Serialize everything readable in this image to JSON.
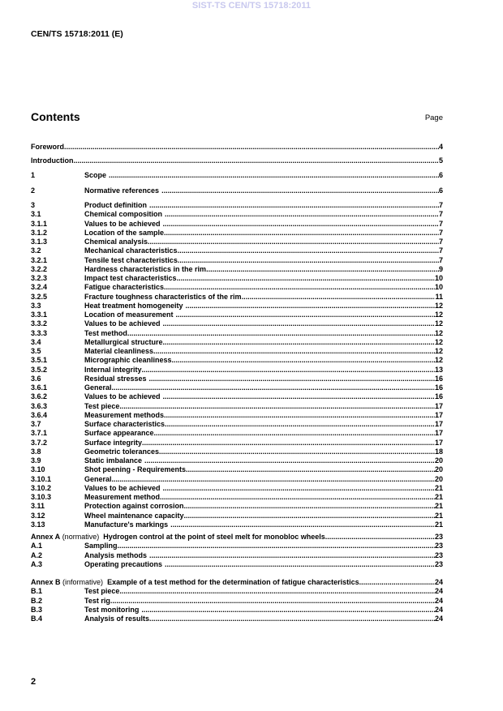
{
  "watermark": "SIST-TS CEN/TS 15718:2011",
  "header": "CEN/TS 15718:2011 (E)",
  "contents_title": "Contents",
  "page_label": "Page",
  "groups": [
    [
      {
        "num": "",
        "title": "Foreword",
        "page": "4"
      }
    ],
    [
      {
        "num": "",
        "title": "Introduction",
        "page": "5"
      }
    ],
    [
      {
        "num": "1",
        "title": "Scope",
        "page": "6"
      }
    ],
    [
      {
        "num": "2",
        "title": "Normative references",
        "page": "6"
      }
    ],
    [
      {
        "num": "3",
        "title": "Product definition",
        "page": "7"
      },
      {
        "num": "3.1",
        "title": "Chemical composition",
        "page": "7"
      },
      {
        "num": "3.1.1",
        "title": "Values to be achieved",
        "page": "7"
      },
      {
        "num": "3.1.2",
        "title": "Location of the sample",
        "page": "7"
      },
      {
        "num": "3.1.3",
        "title": "Chemical analysis",
        "page": "7"
      },
      {
        "num": "3.2",
        "title": "Mechanical characteristics",
        "page": "7"
      },
      {
        "num": "3.2.1",
        "title": "Tensile test characteristics",
        "page": "7"
      },
      {
        "num": "3.2.2",
        "title": "Hardness characteristics in the rim",
        "page": "9"
      },
      {
        "num": "3.2.3",
        "title": "Impact test characteristics",
        "page": "10"
      },
      {
        "num": "3.2.4",
        "title": "Fatigue characteristics",
        "page": "10"
      },
      {
        "num": "3.2.5",
        "title": "Fracture toughness characteristics of the rim",
        "page": "11"
      },
      {
        "num": "3.3",
        "title": "Heat treatment homogeneity",
        "page": "12"
      },
      {
        "num": "3.3.1",
        "title": "Location of measurement",
        "page": "12"
      },
      {
        "num": "3.3.2",
        "title": "Values to be achieved",
        "page": "12"
      },
      {
        "num": "3.3.3",
        "title": "Test method",
        "page": "12"
      },
      {
        "num": "3.4",
        "title": "Metallurgical structure",
        "page": "12"
      },
      {
        "num": "3.5",
        "title": "Material cleanliness",
        "page": "12"
      },
      {
        "num": "3.5.1",
        "title": "Micrographic cleanliness",
        "page": "12"
      },
      {
        "num": "3.5.2",
        "title": "Internal integrity",
        "page": "13"
      },
      {
        "num": "3.6",
        "title": "Residual stresses",
        "page": "16"
      },
      {
        "num": "3.6.1",
        "title": "General",
        "page": "16"
      },
      {
        "num": "3.6.2",
        "title": "Values to be achieved",
        "page": "16"
      },
      {
        "num": "3.6.3",
        "title": "Test piece",
        "page": "17"
      },
      {
        "num": "3.6.4",
        "title": "Measurement methods",
        "page": "17"
      },
      {
        "num": "3.7",
        "title": "Surface characteristics",
        "page": "17"
      },
      {
        "num": "3.7.1",
        "title": "Surface appearance",
        "page": "17"
      },
      {
        "num": "3.7.2",
        "title": "Surface integrity",
        "page": "17"
      },
      {
        "num": "3.8",
        "title": "Geometric tolerances",
        "page": "18"
      },
      {
        "num": "3.9",
        "title": "Static imbalance",
        "page": "20"
      },
      {
        "num": "3.10",
        "title": "Shot peening - Requirements",
        "page": "20"
      },
      {
        "num": "3.10.1",
        "title": "General",
        "page": "20"
      },
      {
        "num": "3.10.2",
        "title": "Values to be achieved",
        "page": "21"
      },
      {
        "num": "3.10.3",
        "title": "Measurement method",
        "page": "21"
      },
      {
        "num": "3.11",
        "title": "Protection against corrosion",
        "page": "21"
      },
      {
        "num": "3.12",
        "title": "Wheel maintenance capacity",
        "page": "21"
      },
      {
        "num": "3.13",
        "title": "Manufacture's markings",
        "page": "21"
      }
    ],
    [
      {
        "annex": "Annex A",
        "kind": "(normative)",
        "title": "Hydrogen control at the point of steel melt for monobloc wheels",
        "page": "23"
      },
      {
        "num": "A.1",
        "title": "Sampling",
        "page": "23"
      },
      {
        "num": "A.2",
        "title": "Analysis methods",
        "page": "23"
      },
      {
        "num": "A.3",
        "title": "Operating precautions",
        "page": "23"
      }
    ],
    [
      {
        "annex": "Annex B",
        "kind": "(informative)",
        "title": "Example of a test method for the determination of fatigue characteristics",
        "page": "24"
      },
      {
        "num": "B.1",
        "title": "Test piece",
        "page": "24"
      },
      {
        "num": "B.2",
        "title": "Test rig",
        "page": "24"
      },
      {
        "num": "B.3",
        "title": "Test monitoring",
        "page": "24"
      },
      {
        "num": "B.4",
        "title": "Analysis of results",
        "page": "24"
      }
    ]
  ],
  "page_number": "2"
}
